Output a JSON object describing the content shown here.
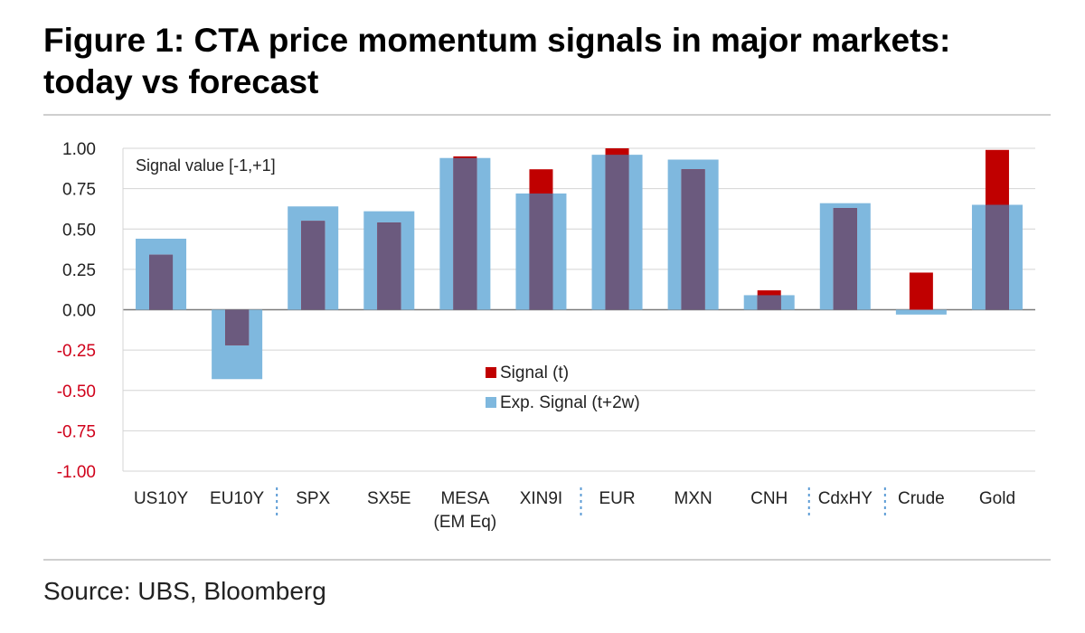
{
  "title": "Figure 1: CTA price momentum signals in major markets: today vs forecast",
  "source": "Source: UBS, Bloomberg",
  "chart_data": {
    "type": "bar",
    "annotation": "Signal value [-1,+1]",
    "ylim": [
      -1.0,
      1.0
    ],
    "yticks": [
      "1.00",
      "0.75",
      "0.50",
      "0.25",
      "0.00",
      "-0.25",
      "-0.50",
      "-0.75",
      "-1.00"
    ],
    "ytick_values": [
      1.0,
      0.75,
      0.5,
      0.25,
      0.0,
      -0.25,
      -0.5,
      -0.75,
      -1.0
    ],
    "grid": true,
    "legend_position": "center",
    "categories": [
      [
        "US10Y"
      ],
      [
        "EU10Y"
      ],
      [
        "SPX"
      ],
      [
        "SX5E"
      ],
      [
        "MESA",
        "(EM Eq)"
      ],
      [
        "XIN9I"
      ],
      [
        "EUR"
      ],
      [
        "MXN"
      ],
      [
        "CNH"
      ],
      [
        "CdxHY"
      ],
      [
        "Crude"
      ],
      [
        "Gold"
      ]
    ],
    "group_separators_before": [
      2,
      6,
      9,
      10
    ],
    "series": [
      {
        "name": "Signal (t)",
        "color": "#c00000",
        "values": [
          0.34,
          -0.22,
          0.55,
          0.54,
          0.95,
          0.87,
          1.0,
          0.87,
          0.12,
          0.63,
          0.23,
          0.99
        ]
      },
      {
        "name": "Exp. Signal (t+2w)",
        "color": "#7fb8de",
        "values": [
          0.44,
          -0.43,
          0.64,
          0.61,
          0.94,
          0.72,
          0.96,
          0.93,
          0.09,
          0.66,
          -0.03,
          0.65
        ]
      }
    ],
    "overlap_color": "#6b5a7e"
  }
}
